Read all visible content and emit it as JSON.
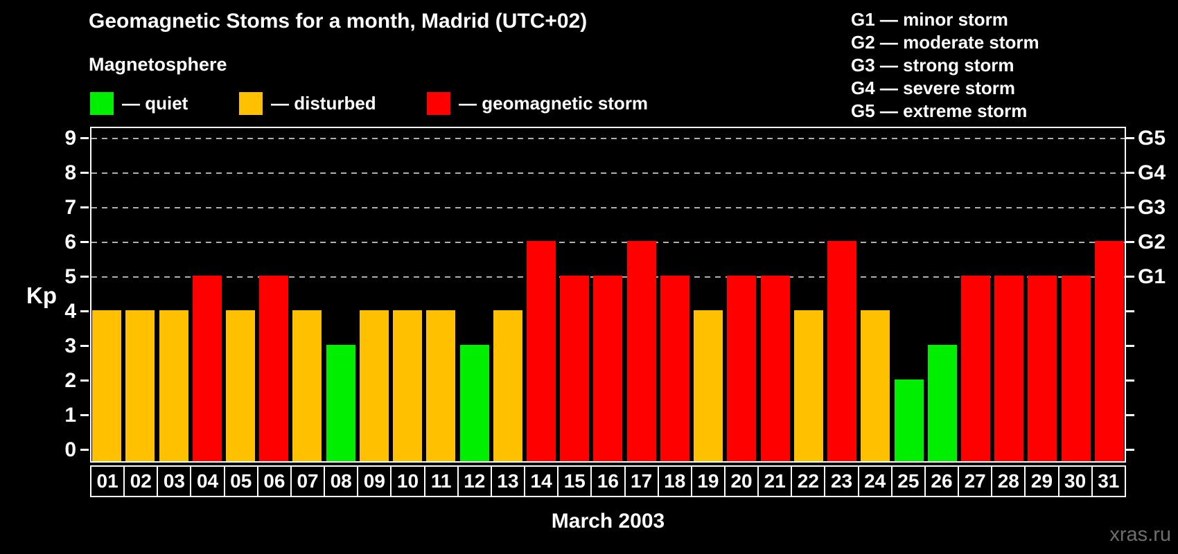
{
  "title": "Geomagnetic Stoms for a month, Madrid (UTC+02)",
  "subtitle": "Magnetosphere",
  "legend": {
    "items": [
      {
        "label": "— quiet",
        "state": "quiet"
      },
      {
        "label": "— disturbed",
        "state": "disturbed"
      },
      {
        "label": "— geomagnetic storm",
        "state": "storm"
      }
    ]
  },
  "g_legend": [
    "G1 — minor storm",
    "G2 — moderate storm",
    "G3 — strong storm",
    "G4 — severe storm",
    "G5 — extreme storm"
  ],
  "colors": {
    "quiet": "#00ee00",
    "disturbed": "#ffc000",
    "storm": "#ff0000",
    "grid": "#b0b0b0",
    "axis": "#ffffff",
    "background": "#000000",
    "watermark": "#6e6e6e"
  },
  "axes": {
    "y_label": "Kp",
    "y_ticks": [
      0,
      1,
      2,
      3,
      4,
      5,
      6,
      7,
      8,
      9
    ],
    "x_label": "March 2003"
  },
  "watermark": "xras.ru",
  "chart_data": {
    "type": "bar",
    "title": "Geomagnetic Stoms for a month, Madrid (UTC+02)",
    "categories": [
      "01",
      "02",
      "03",
      "04",
      "05",
      "06",
      "07",
      "08",
      "09",
      "10",
      "11",
      "12",
      "13",
      "14",
      "15",
      "16",
      "17",
      "18",
      "19",
      "20",
      "21",
      "22",
      "23",
      "24",
      "25",
      "26",
      "27",
      "28",
      "29",
      "30",
      "31"
    ],
    "values": [
      4,
      4,
      4,
      5,
      4,
      5,
      4,
      3,
      4,
      4,
      4,
      3,
      4,
      6,
      5,
      5,
      6,
      5,
      4,
      5,
      5,
      4,
      6,
      4,
      2,
      3,
      5,
      5,
      5,
      5,
      6
    ],
    "states": [
      "disturbed",
      "disturbed",
      "disturbed",
      "storm",
      "disturbed",
      "storm",
      "disturbed",
      "quiet",
      "disturbed",
      "disturbed",
      "disturbed",
      "quiet",
      "disturbed",
      "storm",
      "storm",
      "storm",
      "storm",
      "storm",
      "disturbed",
      "storm",
      "storm",
      "disturbed",
      "storm",
      "disturbed",
      "quiet",
      "quiet",
      "storm",
      "storm",
      "storm",
      "storm",
      "storm"
    ],
    "xlabel": "March 2003",
    "ylabel": "Kp",
    "ylim": [
      0,
      9
    ],
    "gridlines": [
      5,
      6,
      7,
      8,
      9
    ],
    "right_axis": [
      {
        "label": "G1",
        "level": 5
      },
      {
        "label": "G2",
        "level": 6
      },
      {
        "label": "G3",
        "level": 7
      },
      {
        "label": "G4",
        "level": 8
      },
      {
        "label": "G5",
        "level": 9
      }
    ],
    "grid": true,
    "legend_position": "top-left"
  }
}
